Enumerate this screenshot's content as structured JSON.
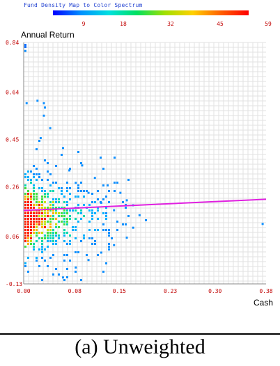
{
  "chart_data": {
    "type": "heatmap",
    "title": "",
    "legend": {
      "title": "Fund Density Map to Color Spectrum",
      "ticks": [
        "9",
        "18",
        "32",
        "45",
        "59"
      ],
      "range": [
        0,
        59
      ]
    },
    "xlabel": "Cash",
    "ylabel": "Annual Return",
    "xlim": [
      0.0,
      0.38
    ],
    "ylim": [
      -0.13,
      0.84
    ],
    "x_ticks": [
      "0.00",
      "0.08",
      "0.15",
      "0.23",
      "0.30",
      "0.38"
    ],
    "y_ticks": [
      "0.84",
      "0.64",
      "0.45",
      "0.26",
      "0.06",
      "-0.13"
    ],
    "grid": true,
    "regression_line": {
      "color": "#e020e0",
      "x": [
        0.0,
        0.38
      ],
      "y": [
        0.165,
        0.21
      ]
    },
    "point_color_scale": [
      "#0000ff",
      "#00aaff",
      "#00e0c0",
      "#00e000",
      "#c0e000",
      "#ffc000",
      "#ff6000",
      "#ff0000"
    ]
  },
  "caption": "(a) Unweighted"
}
